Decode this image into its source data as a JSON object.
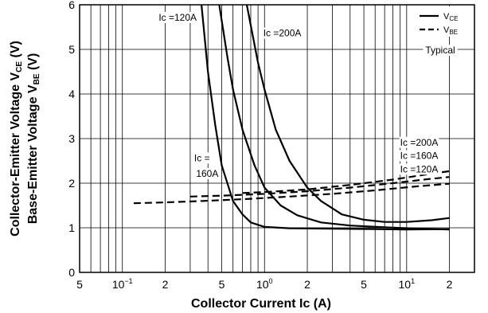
{
  "chart_data": {
    "type": "line",
    "x_scale": "log",
    "grid": true,
    "xlabel": "Collector Current  Ic (A)",
    "ylabel_line1": "Collector-Emitter Voltage V",
    "ylabel_line1_sub": "CE",
    "ylabel_line1_unit": " (V)",
    "ylabel_line2": "Base-Emitter Voltage V",
    "ylabel_line2_sub": "BE",
    "ylabel_line2_unit": " (V)",
    "xlim": [
      0.05,
      30
    ],
    "ylim": [
      0,
      6
    ],
    "x_tick_labels": [
      {
        "x": 0.05,
        "label": "5",
        "sup": ""
      },
      {
        "x": 0.1,
        "label": "10",
        "sup": "−1"
      },
      {
        "x": 0.2,
        "label": "2",
        "sup": ""
      },
      {
        "x": 0.5,
        "label": "5",
        "sup": ""
      },
      {
        "x": 1,
        "label": "10",
        "sup": "0"
      },
      {
        "x": 2,
        "label": "2",
        "sup": ""
      },
      {
        "x": 5,
        "label": "5",
        "sup": ""
      },
      {
        "x": 10,
        "label": "10",
        "sup": "1"
      },
      {
        "x": 20,
        "label": "2",
        "sup": ""
      }
    ],
    "y_ticks": [
      0,
      1,
      2,
      3,
      4,
      5,
      6
    ],
    "legend": {
      "position": "top-right",
      "entries": [
        {
          "label": "V",
          "sub": "CE",
          "style": "solid"
        },
        {
          "label": "V",
          "sub": "BE",
          "style": "dashed"
        }
      ]
    },
    "typical_label": "Typical",
    "annotations": [
      {
        "text": "Ic =120A",
        "x": 0.18,
        "y": 5.7
      },
      {
        "text": "Ic =200A",
        "x": 0.98,
        "y": 5.35
      },
      {
        "text": "Ic =",
        "x": 0.32,
        "y": 2.55
      },
      {
        "text": "160A",
        "x": 0.33,
        "y": 2.2
      },
      {
        "text": "Ic =200A",
        "x": 9.0,
        "y": 2.9
      },
      {
        "text": "Ic =160A",
        "x": 9.0,
        "y": 2.6
      },
      {
        "text": "Ic =120A",
        "x": 9.0,
        "y": 2.3
      }
    ],
    "series": [
      {
        "style": "solid",
        "points": [
          [
            0.36,
            6.0
          ],
          [
            0.4,
            4.5
          ],
          [
            0.45,
            3.3
          ],
          [
            0.5,
            2.4
          ],
          [
            0.6,
            1.6
          ],
          [
            0.7,
            1.3
          ],
          [
            0.8,
            1.12
          ],
          [
            1.0,
            1.02
          ],
          [
            1.5,
            0.99
          ],
          [
            3,
            0.98
          ],
          [
            6,
            0.97
          ],
          [
            10,
            0.96
          ],
          [
            20,
            0.97
          ]
        ]
      },
      {
        "style": "solid",
        "points": [
          [
            0.48,
            6.0
          ],
          [
            0.55,
            4.8
          ],
          [
            0.6,
            4.1
          ],
          [
            0.7,
            3.2
          ],
          [
            0.85,
            2.4
          ],
          [
            1.0,
            1.9
          ],
          [
            1.3,
            1.5
          ],
          [
            1.7,
            1.28
          ],
          [
            2.5,
            1.12
          ],
          [
            4,
            1.05
          ],
          [
            7,
            1.01
          ],
          [
            12,
            0.98
          ],
          [
            20,
            0.96
          ]
        ]
      },
      {
        "style": "solid",
        "points": [
          [
            0.75,
            6.0
          ],
          [
            0.9,
            4.7
          ],
          [
            1.0,
            4.1
          ],
          [
            1.2,
            3.2
          ],
          [
            1.5,
            2.5
          ],
          [
            2.0,
            1.9
          ],
          [
            2.5,
            1.6
          ],
          [
            3.5,
            1.3
          ],
          [
            5,
            1.18
          ],
          [
            7,
            1.13
          ],
          [
            10,
            1.13
          ],
          [
            15,
            1.17
          ],
          [
            20,
            1.22
          ]
        ]
      },
      {
        "style": "dashed",
        "points": [
          [
            0.12,
            1.55
          ],
          [
            0.2,
            1.57
          ],
          [
            0.3,
            1.59
          ],
          [
            0.5,
            1.62
          ],
          [
            0.8,
            1.65
          ],
          [
            1.5,
            1.7
          ],
          [
            3,
            1.76
          ],
          [
            6,
            1.84
          ],
          [
            12,
            1.93
          ],
          [
            20,
            1.99
          ]
        ]
      },
      {
        "style": "dashed",
        "points": [
          [
            0.3,
            1.7
          ],
          [
            0.5,
            1.72
          ],
          [
            1.0,
            1.76
          ],
          [
            2,
            1.82
          ],
          [
            4,
            1.9
          ],
          [
            8,
            2.0
          ],
          [
            14,
            2.09
          ],
          [
            20,
            2.14
          ]
        ]
      },
      {
        "style": "dashed",
        "points": [
          [
            0.7,
            1.78
          ],
          [
            1.0,
            1.8
          ],
          [
            2,
            1.86
          ],
          [
            4,
            1.96
          ],
          [
            8,
            2.08
          ],
          [
            14,
            2.2
          ],
          [
            20,
            2.27
          ]
        ]
      }
    ]
  }
}
